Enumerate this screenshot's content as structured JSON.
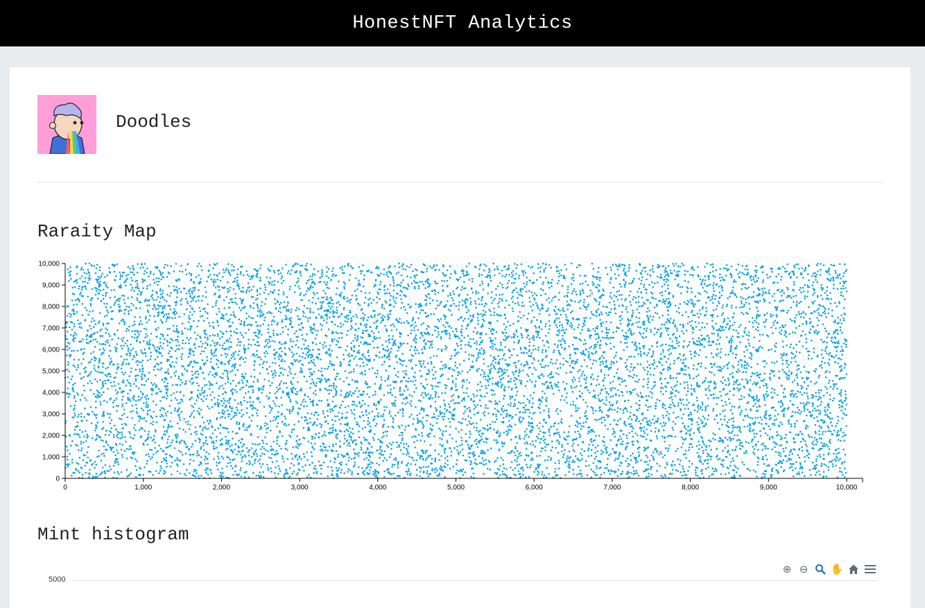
{
  "app": {
    "title": "HonestNFT Analytics"
  },
  "collection": {
    "name": "Doodles",
    "avatar_icon": "doodles-avatar-icon"
  },
  "sections": {
    "rarity_title": "Raraity Map",
    "mint_title": "Mint histogram"
  },
  "histogram": {
    "ytick_top": "5000",
    "toolbar": [
      "zoom-in-icon",
      "zoom-out-icon",
      "selection-zoom-icon",
      "pan-icon",
      "home-icon",
      "menu-icon"
    ]
  },
  "colors": {
    "accent": "#0ea2e6",
    "topbar_bg": "#000000",
    "page_bg": "#e9ecef"
  },
  "chart_data": {
    "type": "scatter",
    "title": "",
    "xlabel": "",
    "ylabel": "",
    "xlim": [
      0,
      10000
    ],
    "ylim": [
      0,
      10000
    ],
    "xticks": [
      "0",
      "1,000",
      "2,000",
      "3,000",
      "4,000",
      "5,000",
      "6,000",
      "7,000",
      "8,000",
      "9,000",
      "10,000"
    ],
    "yticks": [
      "0",
      "1,000",
      "2,000",
      "3,000",
      "4,000",
      "5,000",
      "6,000",
      "7,000",
      "8,000",
      "9,000",
      "10,000"
    ],
    "series": [
      {
        "color": "#0ea2e6",
        "n_points": 10000,
        "distribution": "uniform across token id 0–10,000 (x) and rarity rank 0–10,000 (y)"
      }
    ],
    "grid": false
  }
}
